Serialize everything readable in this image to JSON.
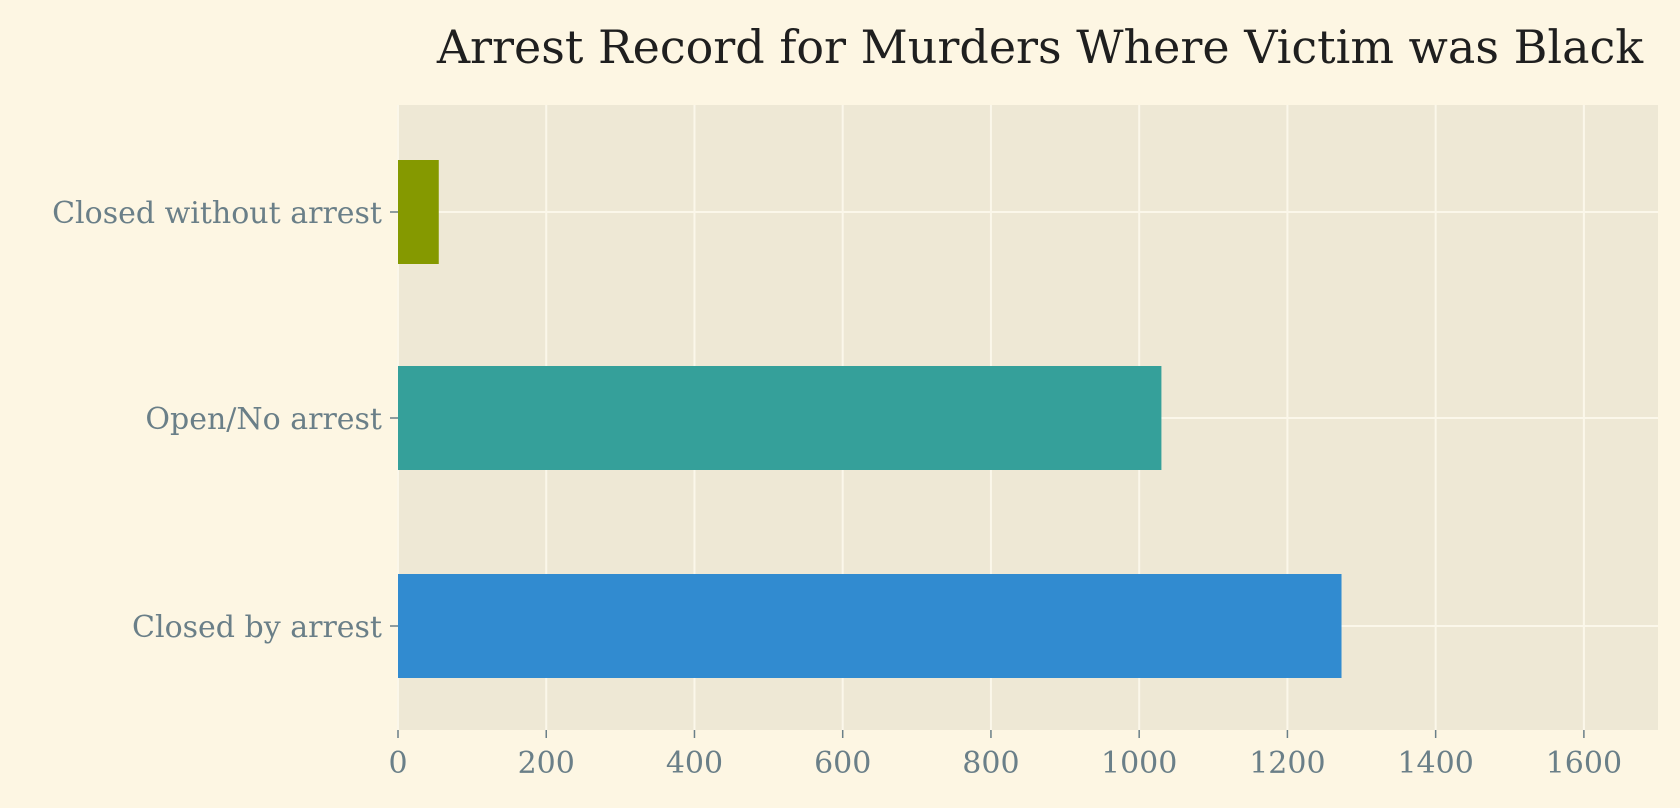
{
  "chart_data": {
    "type": "bar",
    "orientation": "horizontal",
    "title": "Arrest Record for Murders Where Victim was Black",
    "xlabel": "",
    "ylabel": "",
    "categories": [
      "Closed without arrest",
      "Open/No arrest",
      "Closed by arrest"
    ],
    "values": [
      55,
      1030,
      1273
    ],
    "colors": [
      "#859900",
      "#35a09a",
      "#318bd0"
    ],
    "xlim": [
      0,
      1700
    ],
    "xticks": [
      "0",
      "200",
      "400",
      "600",
      "800",
      "1000",
      "1200",
      "1400",
      "1600"
    ],
    "grid": true,
    "legend": "none"
  },
  "theme": {
    "figure_background": "#fdf6e3",
    "plot_background": "#eee8d5",
    "grid_color": "#fbf7ea",
    "tick_label_color": "#6a7f88",
    "title_color": "#1f1f1f"
  }
}
